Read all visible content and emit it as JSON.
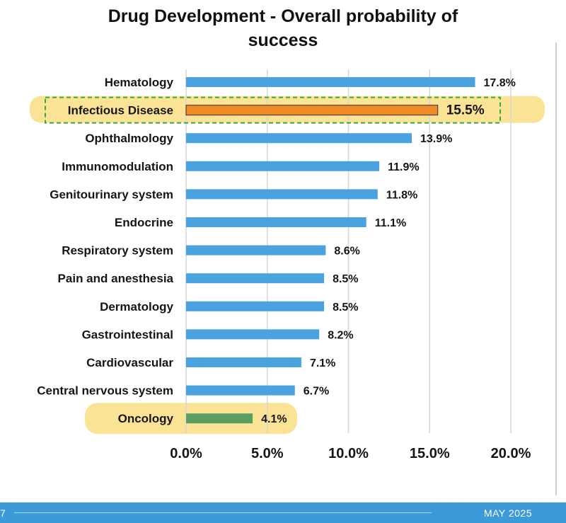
{
  "chart_data": {
    "type": "bar",
    "orientation": "horizontal",
    "title": "Drug Development - Overall probability of success",
    "title_lines": [
      "Drug Development - Overall probability of",
      "success"
    ],
    "xlabel": "",
    "ylabel": "",
    "xlim": [
      0,
      20
    ],
    "x_ticks": [
      "0.0%",
      "5.0%",
      "10.0%",
      "15.0%",
      "20.0%"
    ],
    "x_tick_values": [
      0,
      5,
      10,
      15,
      20
    ],
    "grid": "vertical",
    "categories": [
      "Hematology",
      "Infectious Disease",
      "Ophthalmology",
      "Immunomodulation",
      "Genitourinary system",
      "Endocrine",
      "Respiratory system",
      "Pain and anesthesia",
      "Dermatology",
      "Gastrointestinal",
      "Cardiovascular",
      "Central nervous system",
      "Oncology"
    ],
    "values": [
      17.8,
      15.5,
      13.9,
      11.9,
      11.8,
      11.1,
      8.6,
      8.5,
      8.5,
      8.2,
      7.1,
      6.7,
      4.1
    ],
    "value_labels": [
      "17.8%",
      "15.5%",
      "13.9%",
      "11.9%",
      "11.8%",
      "11.1%",
      "8.6%",
      "8.5%",
      "8.5%",
      "8.2%",
      "7.1%",
      "6.7%",
      "4.1%"
    ],
    "colors": [
      "#4aa3df",
      "#f08a24",
      "#4aa3df",
      "#4aa3df",
      "#4aa3df",
      "#4aa3df",
      "#4aa3df",
      "#4aa3df",
      "#4aa3df",
      "#4aa3df",
      "#4aa3df",
      "#4aa3df",
      "#5a9e62"
    ],
    "highlighted": [
      "Infectious Disease",
      "Oncology"
    ],
    "highlight_color": "#fbe08a",
    "highlight_box_color": "#3aa64a",
    "grid_color": "#d6d6d6"
  },
  "footer": {
    "page_number": "7",
    "date": "MAY 2025",
    "color": "#3d9ad8"
  }
}
